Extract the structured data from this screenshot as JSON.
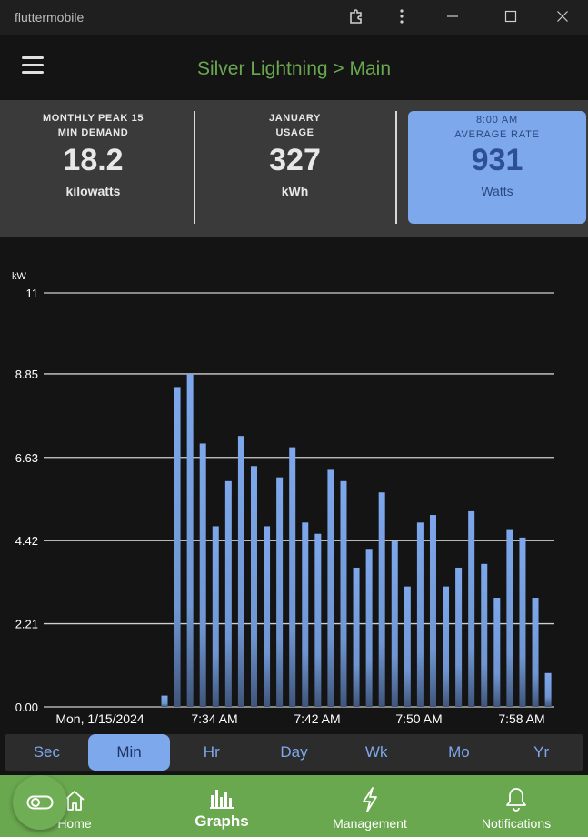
{
  "window": {
    "title": "fluttermobile"
  },
  "header": {
    "title": "Silver Lightning > Main"
  },
  "stats": [
    {
      "label_line1": "MONTHLY PEAK 15",
      "label_line2": "MIN DEMAND",
      "value": "18.2",
      "unit": "kilowatts"
    },
    {
      "label_line1": "JANUARY",
      "label_line2": "USAGE",
      "value": "327",
      "unit": "kWh"
    },
    {
      "label_line1": "8:00 AM",
      "label_line2": "AVERAGE RATE",
      "value": "931",
      "unit": "Watts"
    }
  ],
  "chart_data": {
    "type": "bar",
    "ylabel": "kW",
    "ylim": [
      0,
      11
    ],
    "yticks": [
      "11",
      "8.85",
      "6.63",
      "4.42",
      "2.21",
      "0.00"
    ],
    "ytick_values": [
      11,
      8.85,
      6.63,
      4.42,
      2.21,
      0
    ],
    "xticks": [
      "Mon, 1/15/2024",
      "7:34 AM",
      "7:42 AM",
      "7:50 AM",
      "7:58 AM"
    ],
    "values": [
      0.3,
      8.5,
      8.85,
      7.0,
      4.8,
      6.0,
      7.2,
      6.4,
      4.8,
      6.1,
      6.9,
      4.9,
      4.6,
      6.3,
      6.0,
      3.7,
      4.2,
      5.7,
      4.4,
      3.2,
      4.9,
      5.1,
      3.2,
      3.7,
      5.2,
      3.8,
      2.9,
      4.7,
      4.5,
      2.9,
      0.9
    ],
    "bar_color": "#7ea8ec"
  },
  "range_selector": {
    "options": [
      "Sec",
      "Min",
      "Hr",
      "Day",
      "Wk",
      "Mo",
      "Yr"
    ],
    "selected": "Min"
  },
  "nav": {
    "home": "Home",
    "graphs": "Graphs",
    "management": "Management",
    "notifications": "Notifications"
  },
  "colors": {
    "accent_green": "#6aa84f",
    "accent_blue": "#7ea8ec"
  }
}
